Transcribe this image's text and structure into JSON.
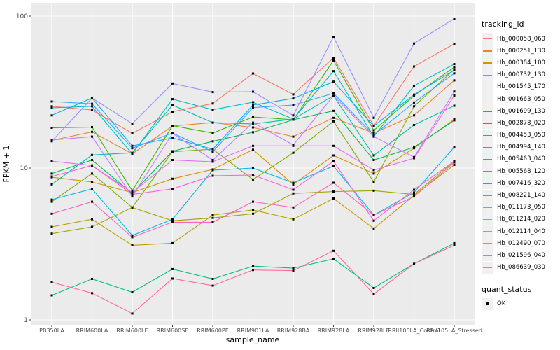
{
  "axis": {
    "tick_label_color": "#4D4D4D",
    "tick_mark_color": "#333333",
    "y_tick_labels": [
      "1",
      "10",
      "100"
    ]
  },
  "legend": {
    "tracking_title": "tracking_id",
    "quant_title": "quant_status",
    "quant_items": [
      {
        "label": "OK"
      }
    ]
  },
  "chart_data": {
    "type": "line",
    "title": "",
    "xlabel": "sample_name",
    "ylabel": "FPKM + 1",
    "y_scale": "log10",
    "ylim": [
      1,
      100
    ],
    "y_ticks": [
      1,
      10,
      100
    ],
    "y_minor_ticks": [
      3.162,
      31.62
    ],
    "grid": "on",
    "legend_position": "right",
    "panel_bg": "#EBEBEB",
    "grid_color": "#FFFFFF",
    "marker": {
      "shape": "square",
      "color": "#000000",
      "size": 3,
      "legend_label": "OK"
    },
    "categories": [
      "PB350LA",
      "RRIM600LA",
      "RRIM600LE",
      "RRIM600SE",
      "RRIM600PE",
      "RRIM901LA",
      "RRIM928BA",
      "RRIM928LA",
      "RRIM928LE",
      "RRII105LA_Control",
      "RRII105LA_Stressed"
    ],
    "series": [
      {
        "name": "Hb_000058_060",
        "color": "#F8766D",
        "values": [
          25.5,
          24.1,
          16.9,
          23.5,
          26.6,
          41.9,
          30.5,
          53.0,
          19.0,
          46.6,
          65.6
        ]
      },
      {
        "name": "Hb_000251_130",
        "color": "#EA8331",
        "values": [
          15.2,
          17.3,
          12.4,
          18.9,
          19.9,
          18.5,
          16.1,
          21.4,
          17.0,
          22.2,
          37.7
        ]
      },
      {
        "name": "Hb_000384_100",
        "color": "#D89000",
        "values": [
          8.7,
          8.1,
          6.9,
          8.5,
          9.8,
          13.2,
          7.8,
          12.1,
          9.2,
          13.5,
          20.9
        ]
      },
      {
        "name": "Hb_000732_130",
        "color": "#C09B00",
        "values": [
          4.1,
          4.6,
          3.1,
          3.2,
          4.9,
          5.3,
          4.6,
          6.3,
          4.0,
          6.6,
          10.5
        ]
      },
      {
        "name": "Hb_001545_170",
        "color": "#A3A500",
        "values": [
          3.7,
          4.1,
          5.5,
          4.5,
          4.7,
          5.0,
          6.8,
          7.0,
          7.1,
          6.7,
          11.1
        ]
      },
      {
        "name": "Hb_001663_050",
        "color": "#7CAE00",
        "values": [
          6.0,
          9.2,
          5.5,
          12.8,
          13.3,
          8.4,
          12.6,
          20.3,
          8.1,
          25.5,
          44.5
        ]
      },
      {
        "name": "Hb_001699_130",
        "color": "#39B600",
        "values": [
          18.4,
          18.6,
          7.1,
          19.0,
          17.0,
          21.7,
          20.8,
          51.0,
          17.7,
          29.9,
          46.1
        ]
      },
      {
        "name": "Hb_002878_020",
        "color": "#00BB4E",
        "values": [
          9.2,
          11.3,
          6.8,
          12.9,
          15.0,
          17.2,
          20.8,
          23.8,
          11.3,
          13.7,
          20.6
        ]
      },
      {
        "name": "Hb_004453_050",
        "color": "#00C087",
        "values": [
          1.45,
          1.86,
          1.52,
          2.16,
          1.86,
          2.26,
          2.19,
          2.52,
          1.62,
          2.34,
          3.2
        ]
      },
      {
        "name": "Hb_004994_140",
        "color": "#00C0B2",
        "values": [
          7.8,
          12.2,
          12.6,
          26.0,
          19.9,
          19.5,
          21.0,
          29.9,
          12.1,
          19.2,
          25.7
        ]
      },
      {
        "name": "Hb_005463_040",
        "color": "#00BFC4",
        "values": [
          24.9,
          25.5,
          12.4,
          28.4,
          24.2,
          27.1,
          21.0,
          43.4,
          16.1,
          34.7,
          48.3
        ]
      },
      {
        "name": "Hb_005568_120",
        "color": "#00BAE3",
        "values": [
          6.2,
          7.3,
          3.6,
          4.6,
          9.7,
          10.0,
          8.0,
          10.3,
          4.9,
          6.9,
          13.7
        ]
      },
      {
        "name": "Hb_007416_320",
        "color": "#00B0F6",
        "values": [
          22.2,
          28.9,
          14.0,
          15.8,
          13.3,
          26.0,
          28.7,
          37.0,
          18.9,
          30.4,
          44.0
        ]
      },
      {
        "name": "Hb_008221_140",
        "color": "#35A2FF",
        "values": [
          27.4,
          26.5,
          13.5,
          17.0,
          12.8,
          25.0,
          26.0,
          31.0,
          16.5,
          27.0,
          42.0
        ]
      },
      {
        "name": "Hb_011173_050",
        "color": "#9590FF",
        "values": [
          15.0,
          28.9,
          19.6,
          36.0,
          31.6,
          31.8,
          22.2,
          73.0,
          21.4,
          66.0,
          96.2
        ]
      },
      {
        "name": "Hb_011214_020",
        "color": "#C77CFF",
        "values": [
          15.3,
          16.1,
          6.5,
          16.9,
          11.3,
          19.9,
          14.2,
          29.9,
          16.1,
          11.8,
          31.9
        ]
      },
      {
        "name": "Hb_012114_040",
        "color": "#E76BF3",
        "values": [
          11.1,
          10.4,
          6.9,
          11.3,
          11.0,
          14.0,
          14.0,
          14.0,
          9.7,
          11.6,
          30.0
        ]
      },
      {
        "name": "Hb_012490_070",
        "color": "#FA62DB",
        "values": [
          8.8,
          10.4,
          6.7,
          7.3,
          8.9,
          9.0,
          7.2,
          11.1,
          4.5,
          7.2,
          11.1
        ]
      },
      {
        "name": "Hb_021596_040",
        "color": "#FF62BC",
        "values": [
          5.0,
          6.0,
          3.5,
          4.4,
          4.4,
          6.0,
          5.5,
          8.0,
          4.9,
          6.5,
          10.9
        ]
      },
      {
        "name": "Hb_086639_030",
        "color": "#FF6A98",
        "values": [
          1.77,
          1.5,
          1.1,
          1.87,
          1.68,
          2.13,
          2.11,
          2.85,
          1.48,
          2.34,
          3.1
        ]
      }
    ]
  }
}
